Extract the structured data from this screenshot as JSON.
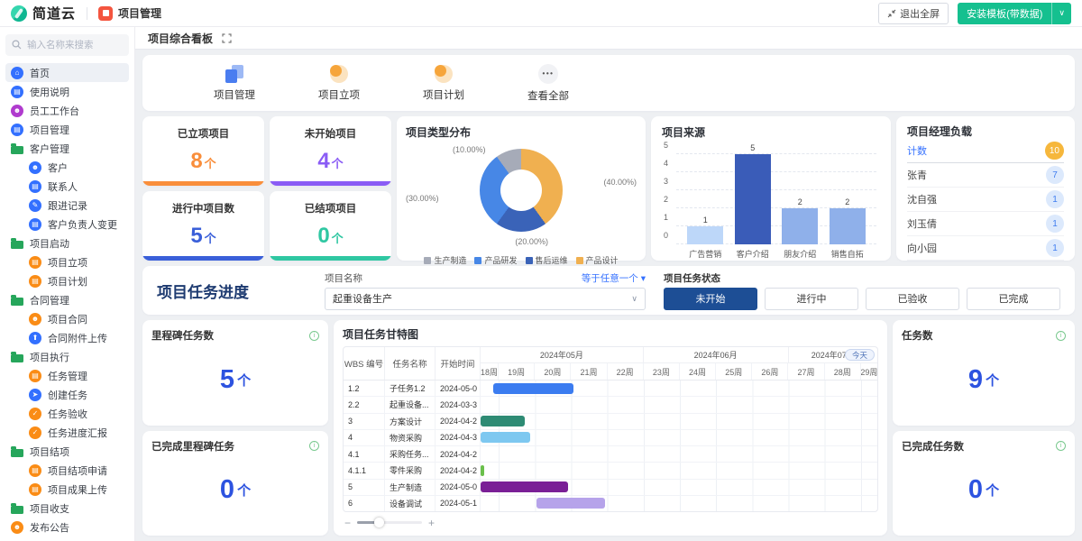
{
  "topbar": {
    "logo_text": "简道云",
    "app_name": "项目管理",
    "exit_fullscreen": "退出全屏",
    "install_template": "安装模板(带数据)",
    "brand_green": "#15c08f",
    "app_icon_red": "#f4553f"
  },
  "tab": {
    "title": "项目综合看板"
  },
  "sidebar": {
    "search_placeholder": "输入名称来搜索",
    "items": [
      {
        "label": "首页",
        "icon": "home",
        "color": "#3370ff",
        "active": true,
        "indent": false
      },
      {
        "label": "使用说明",
        "icon": "doc",
        "color": "#3370ff",
        "indent": false
      },
      {
        "label": "员工工作台",
        "icon": "person",
        "color": "#b03bce",
        "indent": false
      },
      {
        "label": "项目管理",
        "icon": "doc",
        "color": "#3370ff",
        "indent": false
      },
      {
        "label": "客户管理",
        "icon": "folder",
        "color": "#26a65b",
        "indent": false
      },
      {
        "label": "客户",
        "icon": "person",
        "color": "#3370ff",
        "indent": true
      },
      {
        "label": "联系人",
        "icon": "doc",
        "color": "#3370ff",
        "indent": true
      },
      {
        "label": "跟进记录",
        "icon": "note",
        "color": "#3370ff",
        "indent": true
      },
      {
        "label": "客户负责人变更",
        "icon": "doc",
        "color": "#3370ff",
        "indent": true
      },
      {
        "label": "项目启动",
        "icon": "folder",
        "color": "#26a65b",
        "indent": false
      },
      {
        "label": "项目立项",
        "icon": "doc",
        "color": "#fa8c16",
        "indent": true
      },
      {
        "label": "项目计划",
        "icon": "doc",
        "color": "#fa8c16",
        "indent": true
      },
      {
        "label": "合同管理",
        "icon": "folder",
        "color": "#26a65b",
        "indent": false
      },
      {
        "label": "项目合同",
        "icon": "person",
        "color": "#fa8c16",
        "indent": true
      },
      {
        "label": "合同附件上传",
        "icon": "upload",
        "color": "#3370ff",
        "indent": true
      },
      {
        "label": "项目执行",
        "icon": "folder",
        "color": "#26a65b",
        "indent": false
      },
      {
        "label": "任务管理",
        "icon": "doc",
        "color": "#fa8c16",
        "indent": true
      },
      {
        "label": "创建任务",
        "icon": "send",
        "color": "#3370ff",
        "indent": true
      },
      {
        "label": "任务验收",
        "icon": "check",
        "color": "#fa8c16",
        "indent": true
      },
      {
        "label": "任务进度汇报",
        "icon": "check",
        "color": "#fa8c16",
        "indent": true
      },
      {
        "label": "项目结项",
        "icon": "folder",
        "color": "#26a65b",
        "indent": false
      },
      {
        "label": "项目结项申请",
        "icon": "doc",
        "color": "#fa8c16",
        "indent": true
      },
      {
        "label": "项目成果上传",
        "icon": "doc",
        "color": "#fa8c16",
        "indent": true
      },
      {
        "label": "项目收支",
        "icon": "folder",
        "color": "#26a65b",
        "indent": false
      },
      {
        "label": "发布公告",
        "icon": "person",
        "color": "#fa8c16",
        "indent": false
      }
    ]
  },
  "quicklinks": {
    "items": [
      {
        "label": "项目管理",
        "kind": "doc"
      },
      {
        "label": "项目立项",
        "kind": "circle"
      },
      {
        "label": "项目计划",
        "kind": "circle"
      },
      {
        "label": "查看全部",
        "kind": "more"
      }
    ],
    "more_glyph": "•••"
  },
  "stats": [
    {
      "label": "已立项项目",
      "value": "8",
      "unit": "个",
      "color": "#f98e3b"
    },
    {
      "label": "未开始项目",
      "value": "4",
      "unit": "个",
      "color": "#8a5cf5"
    },
    {
      "label": "进行中项目数",
      "value": "5",
      "unit": "个",
      "color": "#3a5fd9"
    },
    {
      "label": "已结项项目",
      "value": "0",
      "unit": "个",
      "color": "#2fc7a2"
    }
  ],
  "chart_data": [
    {
      "type": "pie",
      "donut": true,
      "title": "项目类型分布",
      "labels": [
        "生产制造",
        "产品研发",
        "售后运维",
        "产品设计"
      ],
      "values": [
        10,
        30,
        20,
        40
      ],
      "colors": [
        "#a6abb8",
        "#4787e6",
        "#3a63b8",
        "#f0b050"
      ],
      "annotations": [
        {
          "text": "(10.00%)",
          "pos": "tl"
        },
        {
          "text": "(30.00%)",
          "pos": "l"
        },
        {
          "text": "(20.00%)",
          "pos": "b"
        },
        {
          "text": "(40.00%)",
          "pos": "r"
        }
      ],
      "legend_position": "bottom"
    },
    {
      "type": "bar",
      "title": "项目来源",
      "categories": [
        "广告营销",
        "客户介绍",
        "朋友介绍",
        "销售自拓"
      ],
      "values": [
        1,
        5,
        2,
        2
      ],
      "colors": [
        "#bdd7f9",
        "#3a5cb8",
        "#8fb0ea",
        "#8fb0ea"
      ],
      "ylim": [
        0,
        5
      ],
      "yticks": [
        0,
        1,
        2,
        3,
        4,
        5
      ],
      "grid": "dashed"
    },
    {
      "type": "table",
      "title": "项目经理负载",
      "count_label": "计数",
      "count_value": "10",
      "rows": [
        {
          "name": "张青",
          "count": "7"
        },
        {
          "name": "沈自强",
          "count": "1"
        },
        {
          "name": "刘玉倩",
          "count": "1"
        },
        {
          "name": "向小园",
          "count": "1"
        }
      ]
    },
    {
      "type": "gantt",
      "title": "项目任务甘特图",
      "today_label": "今天",
      "columns": [
        "WBS 编号",
        "任务名称",
        "开始时间"
      ],
      "months": [
        {
          "label": "2024年05月",
          "weeks": [
            "18周",
            "19周",
            "20周",
            "21周",
            "22周"
          ]
        },
        {
          "label": "2024年06月",
          "weeks": [
            "23周",
            "24周",
            "25周",
            "26周"
          ]
        },
        {
          "label": "2024年07月",
          "weeks": [
            "27周",
            "28周",
            "29周"
          ]
        }
      ],
      "week_units": [
        0.5,
        1,
        1,
        1,
        1,
        1,
        1,
        1,
        1,
        1,
        1,
        0.45
      ],
      "rows": [
        {
          "wbs": "1.2",
          "name": "子任务1.2",
          "start": "2024-05-0",
          "bar": {
            "left": 3.1,
            "width": 20.2,
            "color": "#3b7cf0"
          }
        },
        {
          "wbs": "2.2",
          "name": "起重设备...",
          "start": "2024-03-3",
          "bar": null
        },
        {
          "wbs": "3",
          "name": "方案设计",
          "start": "2024-04-2",
          "bar": {
            "left": 0,
            "width": 11.1,
            "color": "#2e8b74"
          }
        },
        {
          "wbs": "4",
          "name": "物资采购",
          "start": "2024-04-3",
          "bar": {
            "left": 0,
            "width": 12.6,
            "color": "#7ec8f0"
          }
        },
        {
          "wbs": "4.1",
          "name": "采购任务...",
          "start": "2024-04-2",
          "bar": null
        },
        {
          "wbs": "4.1.1",
          "name": "零件采购",
          "start": "2024-04-2",
          "bar": {
            "left": 0,
            "width": 0.8,
            "color": "#6abf4b"
          }
        },
        {
          "wbs": "5",
          "name": "生产制造",
          "start": "2024-05-0",
          "bar": {
            "left": 0,
            "width": 22,
            "color": "#7a1f96"
          }
        },
        {
          "wbs": "6",
          "name": "设备调试",
          "start": "2024-05-1",
          "bar": {
            "left": 14,
            "width": 17.4,
            "color": "#b6a3ea"
          }
        }
      ],
      "slider": {
        "minus": "−",
        "plus": "+"
      }
    }
  ],
  "progress": {
    "title": "项目任务进度",
    "field_label": "项目名称",
    "operator": "等于任意一个 ▾",
    "select_value": "起重设备生产",
    "status_label": "项目任务状态",
    "statuses": [
      "未开始",
      "进行中",
      "已验收",
      "已完成"
    ],
    "active_status": 0
  },
  "kpis": {
    "milestone": {
      "label": "里程碑任务数",
      "value": "5",
      "unit": "个"
    },
    "milestone_done": {
      "label": "已完成里程碑任务",
      "value": "0",
      "unit": "个"
    },
    "tasks": {
      "label": "任务数",
      "value": "9",
      "unit": "个"
    },
    "tasks_done": {
      "label": "已完成任务数",
      "value": "0",
      "unit": "个"
    }
  }
}
